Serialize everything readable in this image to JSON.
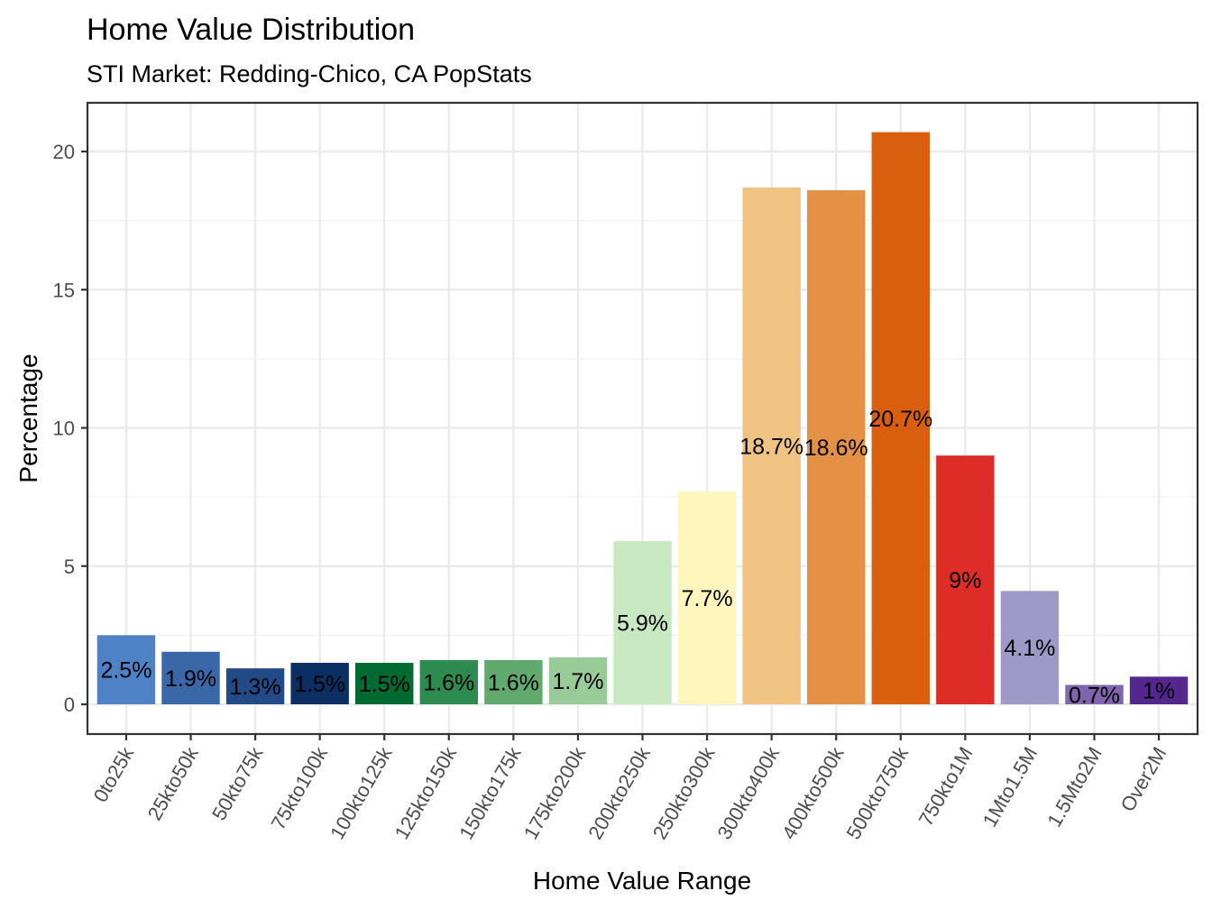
{
  "chart_data": {
    "type": "bar",
    "title": "Home Value Distribution",
    "subtitle": "STI Market: Redding-Chico, CA PopStats",
    "xlabel": "Home Value Range",
    "ylabel": "Percentage",
    "ylim": [
      -1.05,
      21.7
    ],
    "yticks": [
      0,
      5,
      10,
      15,
      20
    ],
    "ytick_labels": [
      "0",
      "5",
      "10",
      "15",
      "20"
    ],
    "grid": true,
    "legend": "none",
    "categories": [
      "0to25k",
      "25kto50k",
      "50kto75k",
      "75kto100k",
      "100kto125k",
      "125kto150k",
      "150kto175k",
      "175kto200k",
      "200kto250k",
      "250kto300k",
      "300kto400k",
      "400kto500k",
      "500kto750k",
      "750kto1M",
      "1Mto1.5M",
      "1.5Mto2M",
      "Over2M"
    ],
    "values": [
      2.5,
      1.9,
      1.3,
      1.5,
      1.5,
      1.6,
      1.6,
      1.7,
      5.9,
      7.7,
      18.7,
      18.6,
      20.7,
      9.0,
      4.1,
      0.7,
      1.0
    ],
    "data_labels": [
      "2.5%",
      "1.9%",
      "1.3%",
      "1.5%",
      "1.5%",
      "1.6%",
      "1.6%",
      "1.7%",
      "5.9%",
      "7.7%",
      "18.7%",
      "18.6%",
      "20.7%",
      "9%",
      "4.1%",
      "0.7%",
      "1%"
    ],
    "colors": [
      "#4f81c7",
      "#3a67a8",
      "#214a87",
      "#0b2f63",
      "#006a31",
      "#2e8b50",
      "#61aa6e",
      "#98cb98",
      "#c7e8c0",
      "#fef6bd",
      "#f0c382",
      "#e49146",
      "#d95f0e",
      "#de2d26",
      "#9e9ac8",
      "#7f64ae",
      "#54278f"
    ]
  }
}
